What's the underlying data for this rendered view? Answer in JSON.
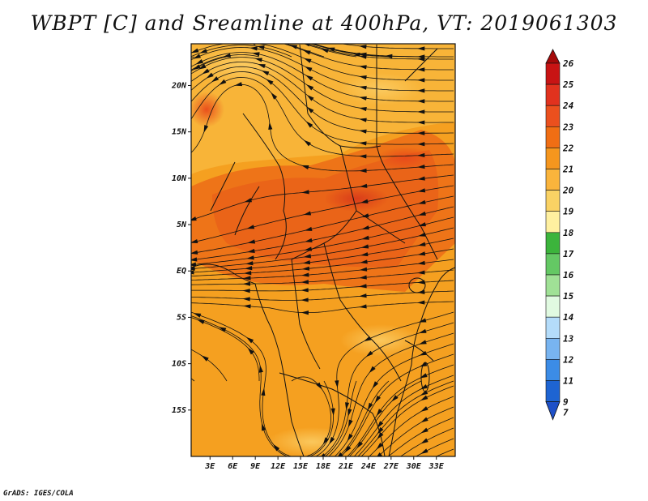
{
  "title": "WBPT [C] and Sreamline at 400hPa, VT: 2019061303",
  "credit": "GrADS: IGES/COLA",
  "map": {
    "lat_labels": [
      "20N",
      "15N",
      "10N",
      "5N",
      "EQ",
      "5S",
      "10S",
      "15S"
    ],
    "lat_values": [
      20,
      15,
      10,
      5,
      0,
      -5,
      -10,
      -15
    ],
    "lon_labels": [
      "3E",
      "6E",
      "9E",
      "12E",
      "15E",
      "18E",
      "21E",
      "24E",
      "27E",
      "30E",
      "33E"
    ],
    "lon_values": [
      3,
      6,
      9,
      12,
      15,
      18,
      21,
      24,
      27,
      30,
      33
    ],
    "lat_range": [
      -20,
      24.5
    ],
    "lon_range": [
      0.5,
      35.5
    ]
  },
  "colorbar": {
    "labels": [
      "26",
      "25",
      "24",
      "23",
      "22",
      "21",
      "20",
      "19",
      "18",
      "17",
      "16",
      "15",
      "14",
      "13",
      "12",
      "11",
      "9",
      "7"
    ],
    "colors": [
      "#a50a0a",
      "#c81414",
      "#e1321e",
      "#eb501e",
      "#f06e14",
      "#f5961e",
      "#fab43c",
      "#fad264",
      "#fff0a0",
      "#3cb43c",
      "#64c864",
      "#a0e196",
      "#e1fae1",
      "#b4dcfa",
      "#78b4f0",
      "#3c8ce6",
      "#1e64d2",
      "#1e50c8"
    ]
  }
}
